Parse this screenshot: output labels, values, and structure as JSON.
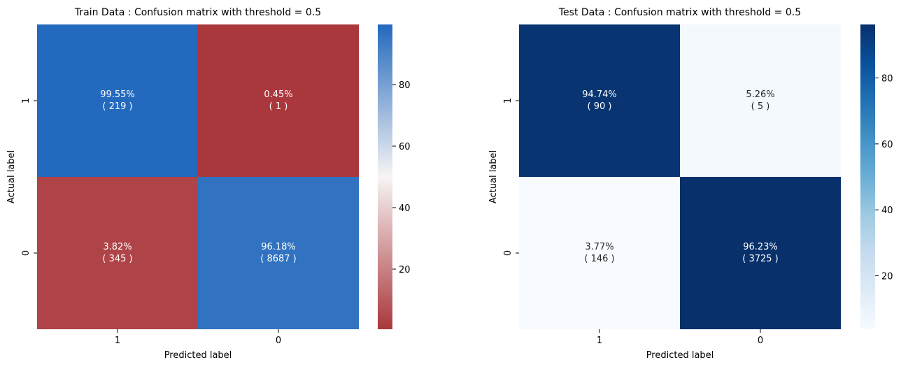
{
  "chart_data": [
    {
      "type": "heatmap",
      "title": "Train Data : Confusion matrix with threshold = 0.5",
      "xlabel": "Predicted label",
      "ylabel": "Actual label",
      "x_ticks": [
        "1",
        "0"
      ],
      "y_ticks": [
        "1",
        "0"
      ],
      "cells": [
        [
          {
            "percent": 99.55,
            "count": 219,
            "pct_label": "99.55%",
            "count_label": "( 219 )"
          },
          {
            "percent": 0.45,
            "count": 1,
            "pct_label": "0.45%",
            "count_label": "( 1 )"
          }
        ],
        [
          {
            "percent": 3.82,
            "count": 345,
            "pct_label": "3.82%",
            "count_label": "( 345 )"
          },
          {
            "percent": 96.18,
            "count": 8687,
            "pct_label": "96.18%",
            "count_label": "( 8687 )"
          }
        ]
      ],
      "colorbar": {
        "colormap": "vlag_r",
        "vmin": 0.45,
        "vmax": 99.55,
        "ticks": [
          "20",
          "40",
          "60",
          "80"
        ],
        "colors": [
          "#a9373b",
          "#f7f4f4",
          "#2369bd"
        ]
      }
    },
    {
      "type": "heatmap",
      "title": "Test Data : Confusion matrix with threshold = 0.5",
      "xlabel": "Predicted label",
      "ylabel": "Actual label",
      "x_ticks": [
        "1",
        "0"
      ],
      "y_ticks": [
        "1",
        "0"
      ],
      "cells": [
        [
          {
            "percent": 94.74,
            "count": 90,
            "pct_label": "94.74%",
            "count_label": "( 90 )"
          },
          {
            "percent": 5.26,
            "count": 5,
            "pct_label": "5.26%",
            "count_label": "( 5 )"
          }
        ],
        [
          {
            "percent": 3.77,
            "count": 146,
            "pct_label": "3.77%",
            "count_label": "( 146 )"
          },
          {
            "percent": 96.23,
            "count": 3725,
            "pct_label": "96.23%",
            "count_label": "( 3725 )"
          }
        ]
      ],
      "colorbar": {
        "colormap": "Blues",
        "vmin": 3.77,
        "vmax": 96.23,
        "ticks": [
          "20",
          "40",
          "60",
          "80"
        ],
        "colors": [
          "#f7fbff",
          "#deebf7",
          "#c6dbef",
          "#9ecae1",
          "#6baed6",
          "#4292c6",
          "#2171b5",
          "#08519c",
          "#08306b"
        ]
      }
    }
  ]
}
